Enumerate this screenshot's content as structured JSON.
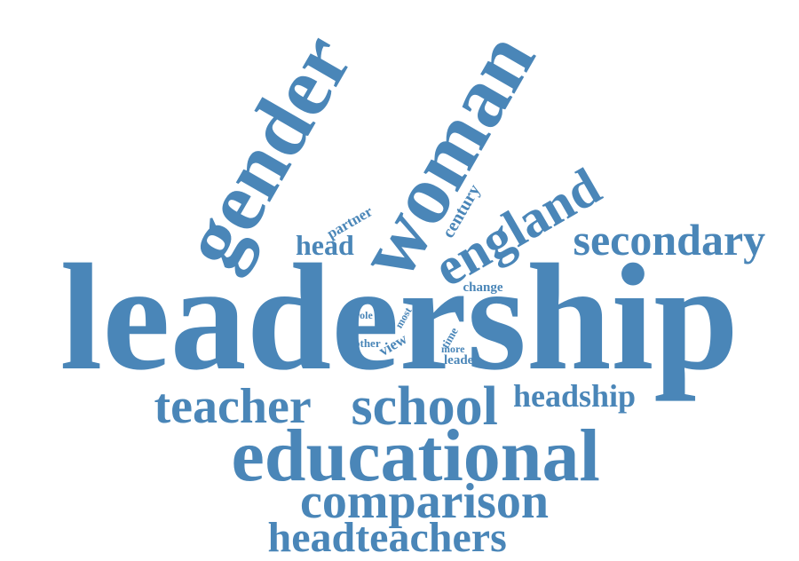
{
  "colors": {
    "word": "#4a86b8",
    "background": "#ffffff"
  },
  "words": {
    "leadership": "leadership",
    "woman": "woman",
    "gender": "gender",
    "england": "england",
    "educational": "educational",
    "school": "school",
    "teacher": "teacher",
    "secondary": "secondary",
    "comparison": "comparison",
    "headteachers": "headteachers",
    "headship": "headship",
    "head": "head",
    "century": "century",
    "partner": "partner",
    "change": "change",
    "role": "role",
    "most": "most",
    "other": "other",
    "view": "view",
    "time": "time",
    "more": "more",
    "leader": "leader"
  }
}
